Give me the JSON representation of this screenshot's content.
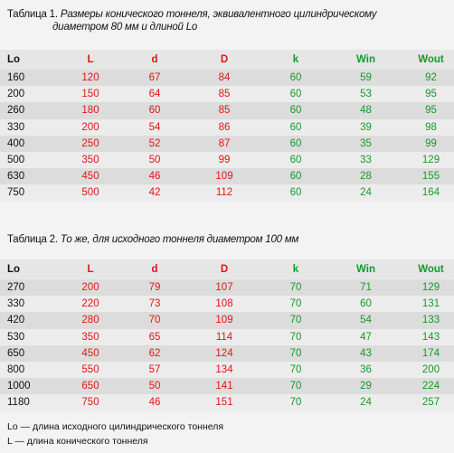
{
  "table1": {
    "caption_number": "Таблица 1.",
    "caption_line1": "Размеры конического тоннеля, эквивалентного цилиндрическому",
    "caption_line2": "диаметром 80 мм и длиной Lo",
    "headers": [
      "Lo",
      "L",
      "d",
      "D",
      "k",
      "Win",
      "Wout"
    ],
    "rows": [
      [
        "160",
        "120",
        "67",
        "84",
        "60",
        "59",
        "92"
      ],
      [
        "200",
        "150",
        "64",
        "85",
        "60",
        "53",
        "95"
      ],
      [
        "260",
        "180",
        "60",
        "85",
        "60",
        "48",
        "95"
      ],
      [
        "330",
        "200",
        "54",
        "86",
        "60",
        "39",
        "98"
      ],
      [
        "400",
        "250",
        "52",
        "87",
        "60",
        "35",
        "99"
      ],
      [
        "500",
        "350",
        "50",
        "99",
        "60",
        "33",
        "129"
      ],
      [
        "630",
        "450",
        "46",
        "109",
        "60",
        "28",
        "155"
      ],
      [
        "750",
        "500",
        "42",
        "112",
        "60",
        "24",
        "164"
      ]
    ]
  },
  "table2": {
    "caption_number": "Таблица 2.",
    "caption_line1": "То же, для исходного тоннеля диаметром 100 мм",
    "headers": [
      "Lo",
      "L",
      "d",
      "D",
      "k",
      "Win",
      "Wout"
    ],
    "rows": [
      [
        "270",
        "200",
        "79",
        "107",
        "70",
        "71",
        "129"
      ],
      [
        "330",
        "220",
        "73",
        "108",
        "70",
        "60",
        "131"
      ],
      [
        "420",
        "280",
        "70",
        "109",
        "70",
        "54",
        "133"
      ],
      [
        "530",
        "350",
        "65",
        "114",
        "70",
        "47",
        "143"
      ],
      [
        "650",
        "450",
        "62",
        "124",
        "70",
        "43",
        "174"
      ],
      [
        "800",
        "550",
        "57",
        "134",
        "70",
        "36",
        "200"
      ],
      [
        "1000",
        "650",
        "50",
        "141",
        "70",
        "29",
        "224"
      ],
      [
        "1180",
        "750",
        "46",
        "151",
        "70",
        "24",
        "257"
      ]
    ]
  },
  "footnotes": [
    "Lo — длина исходного цилиндрического тоннеля",
    "L — длина конического тоннеля"
  ],
  "colors": {
    "background": "#f3f3f3",
    "red": "#e01515",
    "green": "#139a2a"
  }
}
